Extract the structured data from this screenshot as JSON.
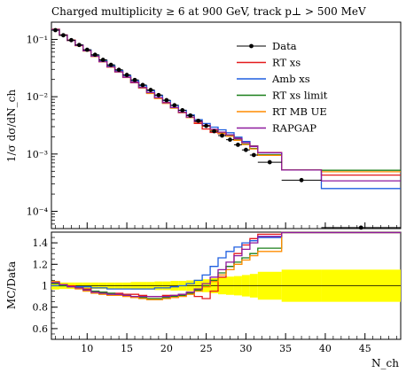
{
  "chart_data": {
    "type": "line",
    "title": "Charged multiplicity ≥ 6 at 900 GeV, track p⊥ > 500 MeV",
    "xlabel": "N_ch",
    "ylabel_main": "1/σ dσ/dN_ch",
    "ylabel_ratio": "MC/Data",
    "xlim": [
      5.5,
      49.5
    ],
    "ylim_main": [
      5e-05,
      0.2
    ],
    "yscale_main": "log",
    "ylim_ratio": [
      0.5,
      1.5
    ],
    "x_ticks": [
      10,
      15,
      20,
      25,
      30,
      35,
      40,
      45
    ],
    "y_ticks_main": [
      {
        "value": 0.1,
        "label": "10⁻¹"
      },
      {
        "value": 0.01,
        "label": "10⁻²"
      },
      {
        "value": 0.001,
        "label": "10⁻³"
      },
      {
        "value": 0.0001,
        "label": "10⁻⁴"
      }
    ],
    "y_ticks_ratio": [
      0.6,
      0.8,
      1,
      1.2,
      1.4
    ],
    "legend_position": "top-right",
    "bin_edges": [
      5.5,
      6.5,
      7.5,
      8.5,
      9.5,
      10.5,
      11.5,
      12.5,
      13.5,
      14.5,
      15.5,
      16.5,
      17.5,
      18.5,
      19.5,
      20.5,
      21.5,
      22.5,
      23.5,
      24.5,
      25.5,
      26.5,
      27.5,
      28.5,
      29.5,
      30.5,
      31.5,
      34.5,
      39.5,
      49.5
    ],
    "data": {
      "name": "Data",
      "color": "#000000",
      "x": [
        6,
        7,
        8,
        9,
        10,
        11,
        12,
        13,
        14,
        15,
        16,
        17,
        18,
        19,
        20,
        21,
        22,
        23,
        24,
        25,
        26,
        27,
        28,
        29,
        30,
        31,
        33,
        37,
        44.5
      ],
      "y": [
        0.145,
        0.118,
        0.097,
        0.08,
        0.066,
        0.054,
        0.044,
        0.036,
        0.0295,
        0.024,
        0.0196,
        0.016,
        0.0131,
        0.0107,
        0.0087,
        0.0071,
        0.0058,
        0.0047,
        0.0038,
        0.0031,
        0.0025,
        0.0021,
        0.00178,
        0.00145,
        0.00118,
        0.00096,
        0.00072,
        0.00035,
        5.2e-05
      ],
      "xerr_low": [
        0.5,
        0.5,
        0.5,
        0.5,
        0.5,
        0.5,
        0.5,
        0.5,
        0.5,
        0.5,
        0.5,
        0.5,
        0.5,
        0.5,
        0.5,
        0.5,
        0.5,
        0.5,
        0.5,
        0.5,
        0.5,
        0.5,
        0.5,
        0.5,
        0.5,
        0.5,
        1.5,
        2.5,
        5
      ],
      "xerr_high": [
        0.5,
        0.5,
        0.5,
        0.5,
        0.5,
        0.5,
        0.5,
        0.5,
        0.5,
        0.5,
        0.5,
        0.5,
        0.5,
        0.5,
        0.5,
        0.5,
        0.5,
        0.5,
        0.5,
        0.5,
        0.5,
        0.5,
        0.5,
        0.5,
        0.5,
        0.5,
        1.5,
        2.5,
        5
      ]
    },
    "series": [
      {
        "name": "RT xs",
        "color": "#e41a1c",
        "ratio": [
          1.03,
          1.01,
          1.0,
          0.99,
          0.97,
          0.95,
          0.94,
          0.93,
          0.93,
          0.92,
          0.92,
          0.91,
          0.9,
          0.9,
          0.91,
          0.91,
          0.92,
          0.93,
          0.9,
          0.88,
          0.95,
          1.08,
          1.18,
          1.3,
          1.38,
          1.44,
          1.48,
          1.5,
          1.5
        ]
      },
      {
        "name": "Amb xs",
        "color": "#1f5fe0",
        "ratio": [
          1.0,
          1.0,
          0.99,
          0.99,
          0.99,
          0.98,
          0.98,
          0.97,
          0.97,
          0.97,
          0.97,
          0.97,
          0.97,
          0.98,
          0.98,
          0.99,
          1.0,
          1.02,
          1.05,
          1.1,
          1.18,
          1.26,
          1.32,
          1.36,
          1.4,
          1.42,
          1.45,
          1.5,
          1.5
        ]
      },
      {
        "name": "RT xs limit",
        "color": "#1a7f1a",
        "ratio": [
          1.02,
          1.0,
          0.99,
          0.98,
          0.96,
          0.95,
          0.94,
          0.93,
          0.92,
          0.91,
          0.9,
          0.89,
          0.88,
          0.88,
          0.89,
          0.9,
          0.91,
          0.93,
          0.96,
          1.0,
          1.05,
          1.12,
          1.18,
          1.22,
          1.26,
          1.3,
          1.35,
          1.5,
          1.5
        ]
      },
      {
        "name": "RT MB UE",
        "color": "#ff8c00",
        "ratio": [
          1.04,
          1.01,
          0.99,
          0.97,
          0.95,
          0.93,
          0.92,
          0.91,
          0.91,
          0.9,
          0.89,
          0.88,
          0.87,
          0.87,
          0.88,
          0.89,
          0.9,
          0.92,
          0.95,
          0.99,
          1.04,
          1.1,
          1.15,
          1.2,
          1.24,
          1.28,
          1.32,
          1.5,
          1.5
        ]
      },
      {
        "name": "RAPGAP",
        "color": "#8e1a9e",
        "ratio": [
          1.03,
          1.01,
          0.99,
          0.98,
          0.96,
          0.94,
          0.93,
          0.92,
          0.92,
          0.91,
          0.9,
          0.9,
          0.9,
          0.9,
          0.9,
          0.91,
          0.92,
          0.94,
          0.97,
          1.02,
          1.08,
          1.15,
          1.22,
          1.28,
          1.34,
          1.4,
          1.46,
          1.5,
          1.5
        ]
      }
    ],
    "last_bin_values": [
      {
        "name": "RT xs",
        "y": 0.00043
      },
      {
        "name": "Amb xs",
        "y": 0.00025
      },
      {
        "name": "RT xs limit",
        "y": 0.00052
      },
      {
        "name": "RT MB UE",
        "y": 0.00049
      },
      {
        "name": "RAPGAP",
        "y": 0.00034
      }
    ],
    "data_uncertainty_band": {
      "color": "#ffff00",
      "half_width": [
        0.035,
        0.03,
        0.03,
        0.03,
        0.03,
        0.03,
        0.03,
        0.03,
        0.03,
        0.03,
        0.035,
        0.035,
        0.035,
        0.04,
        0.04,
        0.045,
        0.045,
        0.05,
        0.055,
        0.06,
        0.07,
        0.08,
        0.085,
        0.09,
        0.1,
        0.11,
        0.13,
        0.15,
        0.15
      ]
    }
  }
}
